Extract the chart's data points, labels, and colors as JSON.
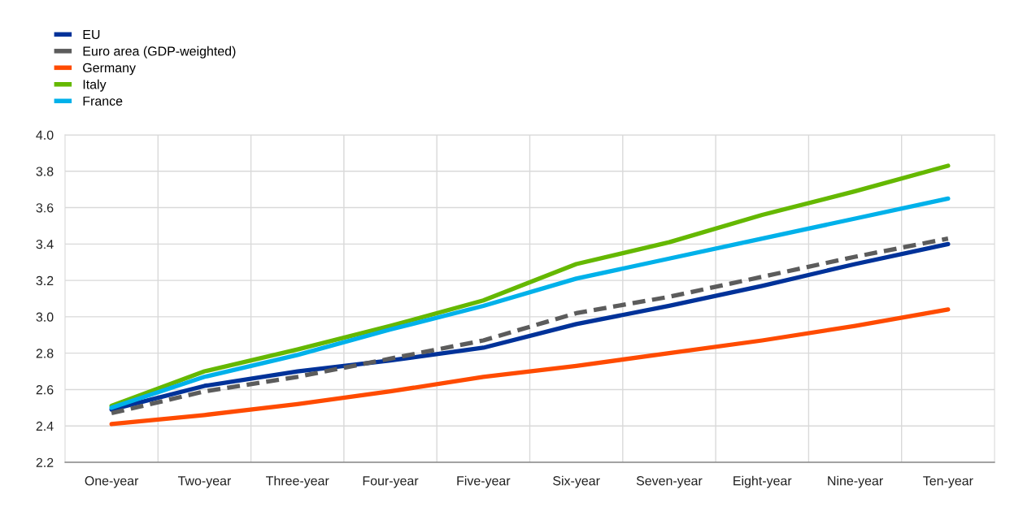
{
  "chart_data": {
    "type": "line",
    "categories": [
      "One-year",
      "Two-year",
      "Three-year",
      "Four-year",
      "Five-year",
      "Six-year",
      "Seven-year",
      "Eight-year",
      "Nine-year",
      "Ten-year"
    ],
    "series": [
      {
        "name": "EU",
        "color": "#003299",
        "values": [
          2.49,
          2.62,
          2.7,
          2.76,
          2.83,
          2.96,
          3.06,
          3.17,
          3.29,
          3.4
        ]
      },
      {
        "name": "Euro area (GDP-weighted)",
        "color": "#5c5c5c",
        "line_style": "dashed",
        "values": [
          2.47,
          2.59,
          2.67,
          2.77,
          2.87,
          3.02,
          3.11,
          3.22,
          3.33,
          3.43
        ]
      },
      {
        "name": "Germany",
        "color": "#ff4b00",
        "values": [
          2.41,
          2.46,
          2.52,
          2.59,
          2.67,
          2.73,
          2.8,
          2.87,
          2.95,
          3.04
        ]
      },
      {
        "name": "Italy",
        "color": "#65b800",
        "values": [
          2.51,
          2.7,
          2.82,
          2.95,
          3.09,
          3.29,
          3.41,
          3.56,
          3.69,
          3.83
        ]
      },
      {
        "name": "France",
        "color": "#00b1ea",
        "values": [
          2.5,
          2.67,
          2.79,
          2.93,
          3.06,
          3.21,
          3.32,
          3.43,
          3.54,
          3.65
        ]
      }
    ],
    "ylim": [
      2.2,
      4.0
    ],
    "yticks": [
      2.2,
      2.4,
      2.6,
      2.8,
      {
        "value": 3.0,
        "label": "3.0"
      },
      3.2,
      3.4,
      3.6,
      3.8,
      {
        "value": 4.0,
        "label": "4.0"
      }
    ],
    "grid": true,
    "legend": "top left",
    "marker": "none",
    "line_style": "solid"
  }
}
